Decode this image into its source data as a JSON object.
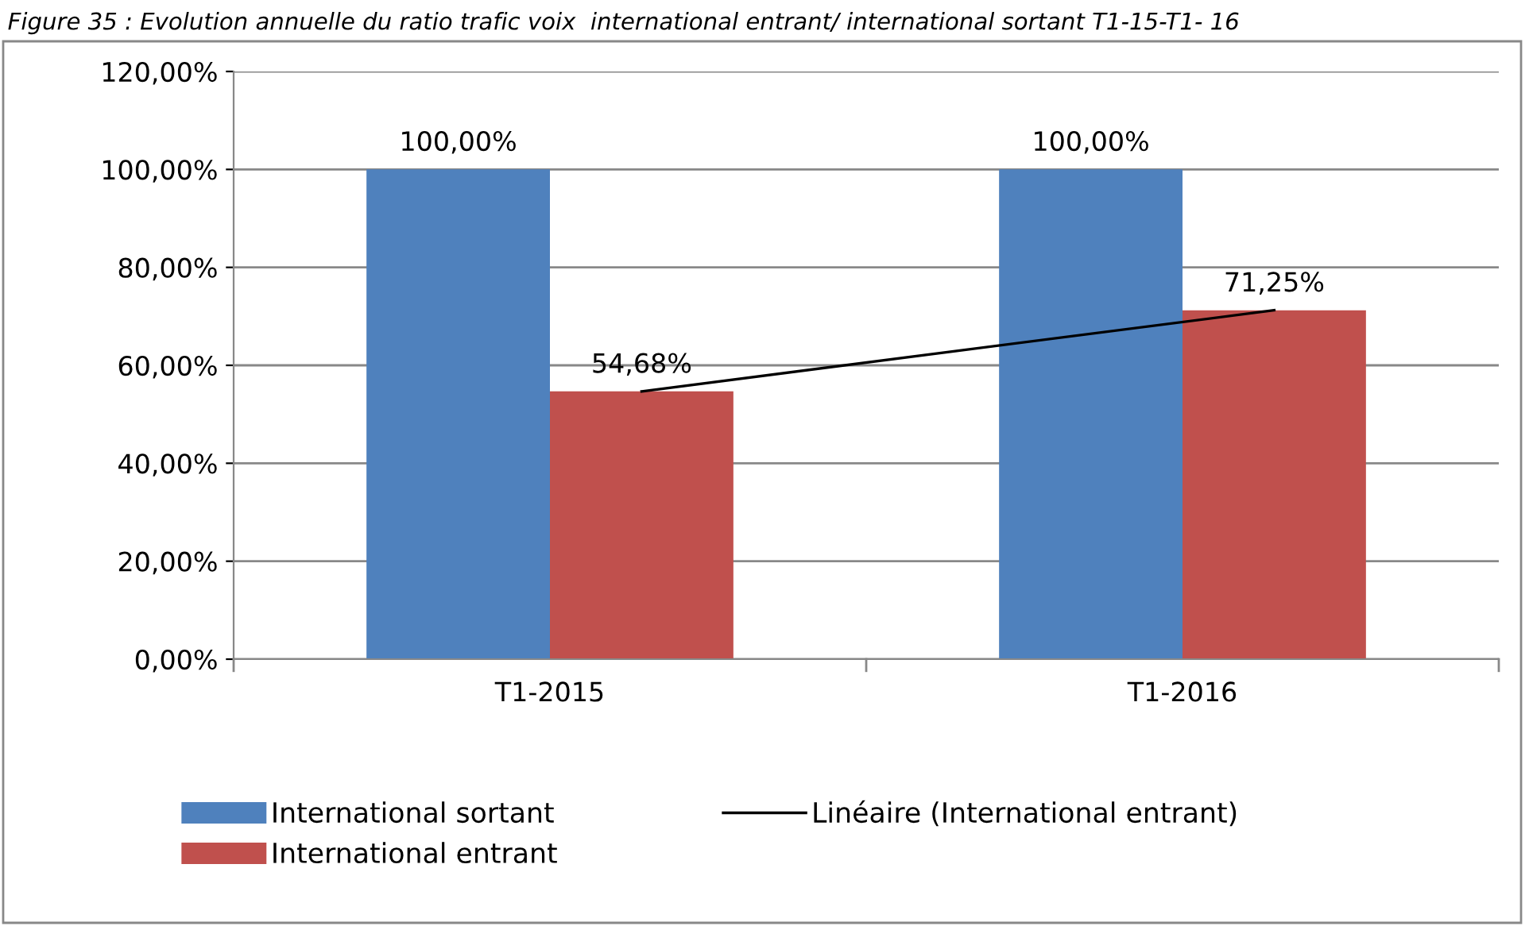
{
  "chart_data": {
    "type": "bar",
    "title": "Figure 35 : Evolution annuelle du ratio trafic voix  international entrant/ international sortant T1-15-T1- 16",
    "categories": [
      "T1-2015",
      "T1-2016"
    ],
    "series": [
      {
        "name": "International sortant",
        "color": "#4f81bd",
        "values": [
          100.0,
          100.0
        ],
        "value_labels": [
          "100,00%",
          "100,00%"
        ]
      },
      {
        "name": "International entrant",
        "color": "#c0504d",
        "values": [
          54.68,
          71.25
        ],
        "value_labels": [
          "54,68%",
          "71,25%"
        ]
      },
      {
        "name": "Linéaire (International entrant)",
        "type": "line",
        "color": "#000000",
        "x": [
          "T1-2015",
          "T1-2016"
        ],
        "values": [
          54.68,
          71.25
        ],
        "line_style": "solid",
        "marker": "none"
      }
    ],
    "ylim": [
      0,
      120
    ],
    "yticks": [
      {
        "value": 0,
        "label": "0,00%"
      },
      {
        "value": 20,
        "label": "20,00%"
      },
      {
        "value": 40,
        "label": "40,00%"
      },
      {
        "value": 60,
        "label": "60,00%"
      },
      {
        "value": 80,
        "label": "80,00%"
      },
      {
        "value": 100,
        "label": "100,00%"
      },
      {
        "value": 120,
        "label": "120,00%"
      }
    ],
    "grid": "y",
    "legend": "bottom"
  }
}
